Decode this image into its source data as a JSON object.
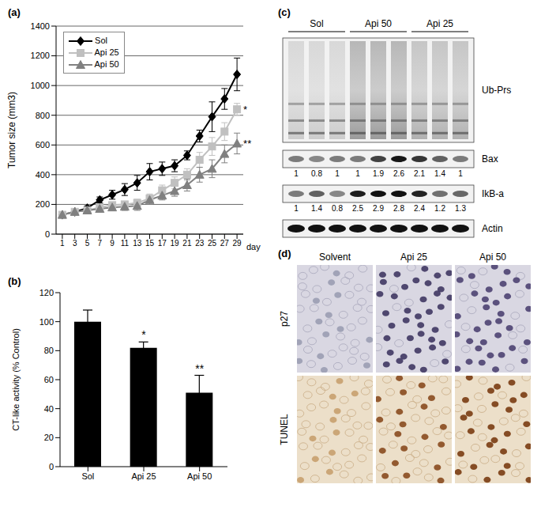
{
  "chart_data": [
    {
      "title": "(a)",
      "type": "line",
      "x_label": "day",
      "y_label": "Tumor size (mm3)",
      "x": [
        1,
        3,
        5,
        7,
        9,
        11,
        13,
        15,
        17,
        19,
        21,
        23,
        25,
        27,
        29
      ],
      "xlim": [
        0,
        30
      ],
      "xticks": [
        1,
        3,
        5,
        7,
        9,
        11,
        13,
        15,
        17,
        19,
        21,
        23,
        25,
        27,
        29
      ],
      "ylim": [
        0,
        1400
      ],
      "yticks": [
        0,
        200,
        400,
        600,
        800,
        1000,
        1200,
        1400
      ],
      "grid": true,
      "legend": "upper left",
      "series": [
        {
          "name": "Sol",
          "color": "#000000",
          "marker": "diamond",
          "values": [
            130,
            150,
            175,
            230,
            265,
            300,
            345,
            420,
            440,
            460,
            530,
            660,
            790,
            910,
            1075
          ],
          "errors": [
            10,
            10,
            15,
            20,
            30,
            40,
            50,
            55,
            45,
            40,
            30,
            40,
            100,
            70,
            110
          ]
        },
        {
          "name": "Api 25",
          "color": "#c0c0c0",
          "marker": "square",
          "values": [
            130,
            150,
            160,
            180,
            195,
            200,
            210,
            240,
            295,
            345,
            400,
            500,
            590,
            690,
            840
          ],
          "errors": [
            10,
            10,
            10,
            15,
            20,
            20,
            25,
            30,
            35,
            40,
            40,
            50,
            60,
            60,
            40
          ]
        },
        {
          "name": "Api 50",
          "color": "#808080",
          "marker": "triangle",
          "values": [
            130,
            150,
            160,
            170,
            180,
            185,
            190,
            230,
            260,
            290,
            330,
            400,
            440,
            540,
            610
          ],
          "errors": [
            10,
            10,
            10,
            15,
            20,
            25,
            30,
            30,
            30,
            35,
            40,
            50,
            60,
            60,
            70
          ]
        }
      ],
      "annotations": [
        {
          "text": "*",
          "x": 29,
          "y": 840
        },
        {
          "text": "**",
          "x": 29,
          "y": 610
        }
      ]
    },
    {
      "title": "(b)",
      "type": "bar",
      "y_label": "CT-like activity (% Control)",
      "categories": [
        "Sol",
        "Api 25",
        "Api 50"
      ],
      "values": [
        100,
        82,
        51
      ],
      "errors": [
        8,
        4,
        12
      ],
      "color": "#000000",
      "ylim": [
        0,
        120
      ],
      "yticks": [
        0,
        20,
        40,
        60,
        80,
        100,
        120
      ],
      "grid": false,
      "annotations": [
        {
          "text": "*",
          "x": "Api 25",
          "y": 86
        },
        {
          "text": "**",
          "x": "Api 50",
          "y": 63
        }
      ]
    }
  ],
  "blot": {
    "title": "(c)",
    "groups": [
      "Sol",
      "Api 50",
      "Api 25"
    ],
    "rows": [
      {
        "label": "Ub-Prs"
      },
      {
        "label": "Bax",
        "values": [
          1,
          0.8,
          1,
          1,
          1.9,
          2.6,
          2.1,
          1.4,
          1
        ]
      },
      {
        "label": "IkB-a",
        "values": [
          1,
          1.4,
          0.8,
          2.5,
          2.9,
          2.8,
          2.4,
          1.2,
          1.3
        ]
      },
      {
        "label": "Actin"
      }
    ]
  },
  "micrographs": {
    "title": "(d)",
    "columns": [
      "Solvent",
      "Api 25",
      "Api 50"
    ],
    "rows": [
      "p27",
      "TUNEL"
    ]
  }
}
